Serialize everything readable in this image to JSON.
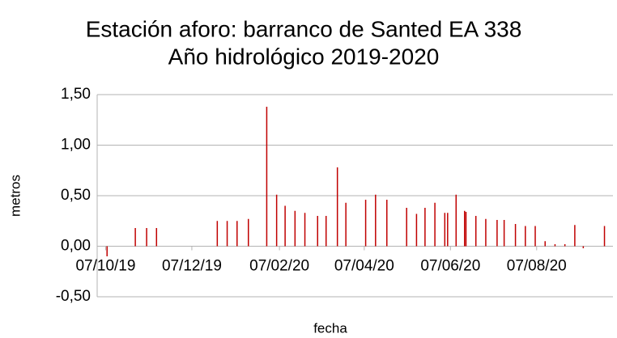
{
  "chart_data": {
    "type": "bar",
    "title": "Estación aforo: barranco de Santed EA 338",
    "subtitle": "Año hidrológico 2019-2020",
    "x_label": "fecha",
    "y_label": "metros",
    "x": [
      "2019-10-08",
      "2019-10-28",
      "2019-11-05",
      "2019-11-12",
      "2019-12-25",
      "2020-01-01",
      "2020-01-08",
      "2020-01-16",
      "2020-01-29",
      "2020-02-05",
      "2020-02-11",
      "2020-02-18",
      "2020-02-25",
      "2020-03-05",
      "2020-03-11",
      "2020-03-19",
      "2020-03-25",
      "2020-04-08",
      "2020-04-15",
      "2020-04-23",
      "2020-05-07",
      "2020-05-14",
      "2020-05-20",
      "2020-05-27",
      "2020-06-03",
      "2020-06-05",
      "2020-06-11",
      "2020-06-17",
      "2020-06-18",
      "2020-06-25",
      "2020-07-02",
      "2020-07-10",
      "2020-07-15",
      "2020-07-23",
      "2020-07-30",
      "2020-08-06",
      "2020-08-13",
      "2020-08-20",
      "2020-08-27",
      "2020-09-03",
      "2020-09-09",
      "2020-09-24"
    ],
    "series": [
      {
        "name": "metros",
        "color": "#c00000",
        "values": [
          -0.1,
          0.18,
          0.18,
          0.18,
          0.25,
          0.25,
          0.25,
          0.27,
          1.38,
          0.51,
          0.4,
          0.35,
          0.33,
          0.3,
          0.3,
          0.78,
          0.43,
          0.46,
          0.51,
          0.46,
          0.38,
          0.32,
          0.38,
          0.43,
          0.33,
          0.33,
          0.51,
          0.35,
          0.34,
          0.3,
          0.27,
          0.26,
          0.26,
          0.22,
          0.2,
          0.2,
          0.05,
          0.02,
          0.02,
          0.21,
          -0.02,
          0.2
        ]
      }
    ],
    "xlim": [
      "2019-10-01",
      "2020-09-30"
    ],
    "xticks": [
      {
        "value": "2019-10-07",
        "label": "07/10/19"
      },
      {
        "value": "2019-12-07",
        "label": "07/12/19"
      },
      {
        "value": "2020-02-07",
        "label": "07/02/20"
      },
      {
        "value": "2020-04-07",
        "label": "07/04/20"
      },
      {
        "value": "2020-06-07",
        "label": "07/06/20"
      },
      {
        "value": "2020-08-07",
        "label": "07/08/20"
      }
    ],
    "ylim": [
      -0.5,
      1.5
    ],
    "yticks": [
      {
        "value": -0.5,
        "label": "-0,50"
      },
      {
        "value": 0,
        "label": "0,00"
      },
      {
        "value": 0.5,
        "label": "0,50"
      },
      {
        "value": 1,
        "label": "1,00"
      },
      {
        "value": 1.5,
        "label": "1,50"
      }
    ],
    "grid": true
  }
}
